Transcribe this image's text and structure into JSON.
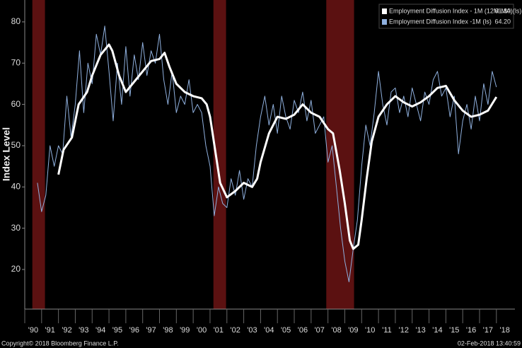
{
  "chart_data": {
    "type": "line",
    "ylabel": "Index Level",
    "xlim": [
      1990,
      2019.1
    ],
    "ylim": [
      10.4,
      85.3
    ],
    "yticks": [
      20,
      30,
      40,
      50,
      60,
      70,
      80
    ],
    "xticks": [
      {
        "value": 1990,
        "label": "'90"
      },
      {
        "value": 1991,
        "label": "'91"
      },
      {
        "value": 1992,
        "label": "'92"
      },
      {
        "value": 1993,
        "label": "'93"
      },
      {
        "value": 1994,
        "label": "'94"
      },
      {
        "value": 1995,
        "label": "'95"
      },
      {
        "value": 1996,
        "label": "'96"
      },
      {
        "value": 1997,
        "label": "'97"
      },
      {
        "value": 1998,
        "label": "'98"
      },
      {
        "value": 1999,
        "label": "'99"
      },
      {
        "value": 2000,
        "label": "'00"
      },
      {
        "value": 2001,
        "label": "'01"
      },
      {
        "value": 2002,
        "label": "'02"
      },
      {
        "value": 2003,
        "label": "'03"
      },
      {
        "value": 2004,
        "label": "'04"
      },
      {
        "value": 2005,
        "label": "'05"
      },
      {
        "value": 2006,
        "label": "'06"
      },
      {
        "value": 2007,
        "label": "'07"
      },
      {
        "value": 2008,
        "label": "'08"
      },
      {
        "value": 2009,
        "label": "'09"
      },
      {
        "value": 2010,
        "label": "'10"
      },
      {
        "value": 2011,
        "label": "'11"
      },
      {
        "value": 2012,
        "label": "'12"
      },
      {
        "value": 2013,
        "label": "'13"
      },
      {
        "value": 2014,
        "label": "'14"
      },
      {
        "value": 2015,
        "label": "'15"
      },
      {
        "value": 2016,
        "label": "'16"
      },
      {
        "value": 2017,
        "label": "'17"
      },
      {
        "value": 2018,
        "label": "'18"
      }
    ],
    "shaded_ranges": [
      [
        1990.45,
        1991.2
      ],
      [
        2001.2,
        2001.95
      ],
      [
        2007.9,
        2009.55
      ]
    ],
    "shade_color": "#6b1414",
    "series": [
      {
        "name": "Employment Diffusion Index -1M (ls)",
        "color": "#8fb0de",
        "width": 1,
        "legend_value": "64.20",
        "x": [
          1990.75,
          1991,
          1991.25,
          1991.5,
          1991.75,
          1992,
          1992.25,
          1992.5,
          1992.75,
          1993,
          1993.25,
          1993.5,
          1993.75,
          1994,
          1994.25,
          1994.5,
          1994.75,
          1995,
          1995.25,
          1995.5,
          1995.75,
          1996,
          1996.25,
          1996.5,
          1996.75,
          1997,
          1997.25,
          1997.5,
          1997.75,
          1998,
          1998.25,
          1998.5,
          1998.75,
          1999,
          1999.25,
          1999.5,
          1999.75,
          2000,
          2000.25,
          2000.5,
          2000.75,
          2001,
          2001.25,
          2001.5,
          2001.75,
          2002,
          2002.25,
          2002.5,
          2002.75,
          2003,
          2003.25,
          2003.5,
          2003.75,
          2004,
          2004.25,
          2004.5,
          2004.75,
          2005,
          2005.25,
          2005.5,
          2005.75,
          2006,
          2006.25,
          2006.5,
          2006.75,
          2007,
          2007.25,
          2007.5,
          2007.75,
          2008,
          2008.25,
          2008.5,
          2008.75,
          2009,
          2009.25,
          2009.5,
          2009.75,
          2010,
          2010.25,
          2010.5,
          2010.75,
          2011,
          2011.25,
          2011.5,
          2011.75,
          2012,
          2012.25,
          2012.5,
          2012.75,
          2013,
          2013.25,
          2013.5,
          2013.75,
          2014,
          2014.25,
          2014.5,
          2014.75,
          2015,
          2015.25,
          2015.5,
          2015.75,
          2016,
          2016.25,
          2016.5,
          2016.75,
          2017,
          2017.25,
          2017.5,
          2017.75,
          2018
        ],
        "values": [
          41,
          34,
          38,
          50,
          45,
          50,
          48,
          62,
          52,
          60,
          73,
          58,
          70,
          65,
          77,
          72,
          79,
          68,
          56,
          70,
          60,
          74,
          62,
          72,
          66,
          75,
          67,
          73,
          70,
          77,
          66,
          60,
          68,
          58,
          62,
          60,
          66,
          58,
          60,
          58,
          50,
          45,
          33,
          40,
          36,
          35,
          42,
          38,
          44,
          37,
          42,
          40,
          50,
          57,
          62,
          55,
          60,
          53,
          62,
          57,
          54,
          61,
          58,
          63,
          56,
          61,
          53,
          55,
          57,
          46,
          50,
          40,
          30,
          22,
          17,
          25,
          32,
          45,
          55,
          50,
          58,
          68,
          60,
          55,
          63,
          64,
          58,
          62,
          57,
          64,
          60,
          56,
          63,
          60,
          66,
          68,
          62,
          64,
          57,
          62,
          48,
          56,
          60,
          54,
          62,
          56,
          65,
          60,
          68,
          64.2
        ]
      },
      {
        "name": "Employment Diffusion Index - 1M (12M-MA)(ls)",
        "color": "#ffffff",
        "width": 3,
        "legend_value": "61.80",
        "x": [
          1992,
          1992.3,
          1992.8,
          1993.2,
          1993.7,
          1994,
          1994.5,
          1995,
          1995.2,
          1995.6,
          1996,
          1996.5,
          1997,
          1997.5,
          1998,
          1998.3,
          1998.6,
          1999,
          1999.5,
          2000,
          2000.5,
          2000.8,
          2001,
          2001.3,
          2001.6,
          2002,
          2002.5,
          2003,
          2003.5,
          2003.8,
          2004,
          2004.5,
          2005,
          2005.5,
          2006,
          2006.5,
          2007,
          2007.5,
          2008,
          2008.3,
          2008.7,
          2009,
          2009.3,
          2009.5,
          2009.8,
          2010,
          2010.3,
          2010.6,
          2011,
          2011.5,
          2012,
          2012.5,
          2013,
          2013.5,
          2014,
          2014.5,
          2015,
          2015.5,
          2016,
          2016.5,
          2017,
          2017.5,
          2018
        ],
        "values": [
          43,
          49,
          52,
          60,
          63,
          67,
          72,
          74.5,
          73,
          67,
          63,
          65.5,
          68,
          70.5,
          71,
          72.5,
          69,
          65,
          63,
          62,
          61.5,
          60,
          57,
          49,
          41,
          37.5,
          39,
          41,
          40,
          42,
          46,
          53,
          57,
          56.5,
          57.5,
          60,
          58,
          57,
          54,
          53,
          44,
          36,
          27,
          25,
          26,
          32,
          42,
          51,
          57,
          60,
          62,
          60.5,
          59.5,
          60.5,
          62,
          64,
          64.5,
          61,
          58.5,
          57,
          57.5,
          58.5,
          61.8
        ]
      }
    ],
    "footer_left": "Copyright© 2018 Bloomberg Finance L.P.",
    "footer_right": "02-Feb-2018 13:40:59"
  }
}
